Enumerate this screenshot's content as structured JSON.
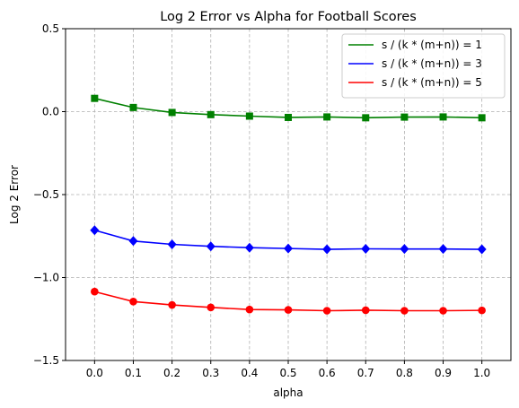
{
  "chart_data": {
    "type": "line",
    "title": "Log 2 Error vs Alpha for Football Scores",
    "xlabel": "alpha",
    "ylabel": "Log 2 Error",
    "x": [
      0.0,
      0.1,
      0.2,
      0.3,
      0.4,
      0.5,
      0.6,
      0.7,
      0.8,
      0.9,
      1.0
    ],
    "x_tick_labels": [
      "0.0",
      "0.1",
      "0.2",
      "0.3",
      "0.4",
      "0.5",
      "0.6",
      "0.7",
      "0.8",
      "0.9",
      "1.0"
    ],
    "y_ticks": [
      0.5,
      0.0,
      -0.5,
      -1.0,
      -1.5
    ],
    "y_tick_labels": [
      "0.5",
      "0.0",
      "−0.5",
      "−1.0",
      "−1.5"
    ],
    "xlim": [
      -0.075,
      1.075
    ],
    "ylim": [
      -1.5,
      0.5
    ],
    "grid": true,
    "legend_position": "top-right",
    "series": [
      {
        "name": "s / (k * (m+n)) = 1",
        "color": "#008000",
        "marker": "square",
        "values": [
          0.08,
          0.025,
          -0.005,
          -0.018,
          -0.027,
          -0.035,
          -0.032,
          -0.037,
          -0.033,
          -0.032,
          -0.037
        ]
      },
      {
        "name": "s / (k * (m+n)) = 3",
        "color": "#0000ff",
        "marker": "diamond",
        "values": [
          -0.715,
          -0.78,
          -0.8,
          -0.812,
          -0.82,
          -0.825,
          -0.83,
          -0.827,
          -0.828,
          -0.828,
          -0.83
        ]
      },
      {
        "name": "s / (k * (m+n)) = 5",
        "color": "#ff0000",
        "marker": "circle",
        "values": [
          -1.085,
          -1.145,
          -1.165,
          -1.18,
          -1.193,
          -1.195,
          -1.2,
          -1.197,
          -1.2,
          -1.2,
          -1.198
        ]
      }
    ]
  }
}
